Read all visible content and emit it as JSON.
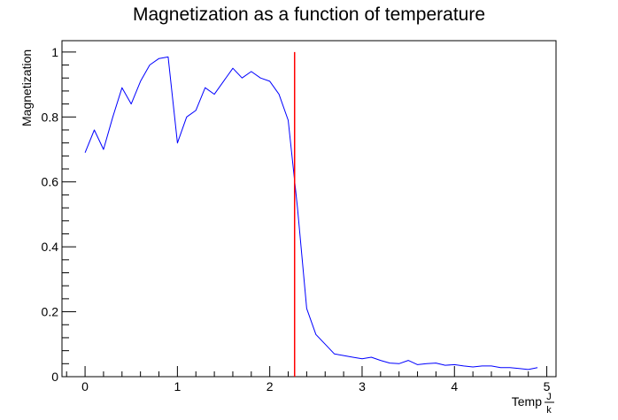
{
  "chart_data": {
    "type": "line",
    "title": "Magnetization as a function of temperature",
    "xlabel": {
      "prefix": "Temp",
      "fraction_numerator": "J",
      "fraction_denominator": "k"
    },
    "ylabel": "Magnetization",
    "xlim": [
      -0.25,
      5.1
    ],
    "ylim": [
      0,
      1.035
    ],
    "x_ticks": [
      0,
      1,
      2,
      3,
      4,
      5
    ],
    "x_tick_labels": [
      "0",
      "1",
      "2",
      "3",
      "4",
      "5"
    ],
    "y_ticks": [
      0,
      0.2,
      0.4,
      0.6,
      0.8,
      1.0
    ],
    "y_tick_labels": [
      "0",
      "0.2",
      "0.4",
      "0.6",
      "0.8",
      "1"
    ],
    "grid": false,
    "series": [
      {
        "color": "#0000ff",
        "x": [
          0.0,
          0.1,
          0.2,
          0.3,
          0.4,
          0.5,
          0.6,
          0.7,
          0.8,
          0.9,
          1.0,
          1.1,
          1.2,
          1.3,
          1.4,
          1.5,
          1.6,
          1.7,
          1.8,
          1.9,
          2.0,
          2.1,
          2.2,
          2.3,
          2.4,
          2.5,
          2.6,
          2.7,
          2.8,
          2.9,
          3.0,
          3.1,
          3.2,
          3.3,
          3.4,
          3.5,
          3.6,
          3.7,
          3.8,
          3.9,
          4.0,
          4.1,
          4.2,
          4.3,
          4.4,
          4.5,
          4.6,
          4.7,
          4.8,
          4.9
        ],
        "y": [
          0.69,
          0.76,
          0.7,
          0.8,
          0.89,
          0.84,
          0.91,
          0.96,
          0.98,
          0.985,
          0.72,
          0.8,
          0.82,
          0.89,
          0.87,
          0.91,
          0.95,
          0.92,
          0.94,
          0.92,
          0.91,
          0.87,
          0.79,
          0.52,
          0.21,
          0.13,
          0.1,
          0.07,
          0.065,
          0.06,
          0.055,
          0.06,
          0.05,
          0.042,
          0.04,
          0.05,
          0.037,
          0.04,
          0.042,
          0.035,
          0.037,
          0.033,
          0.03,
          0.033,
          0.033,
          0.028,
          0.028,
          0.025,
          0.022,
          0.028
        ]
      }
    ],
    "reference_line": {
      "color": "#ff0000",
      "x": 2.269,
      "y": [
        0,
        1.0
      ]
    }
  }
}
